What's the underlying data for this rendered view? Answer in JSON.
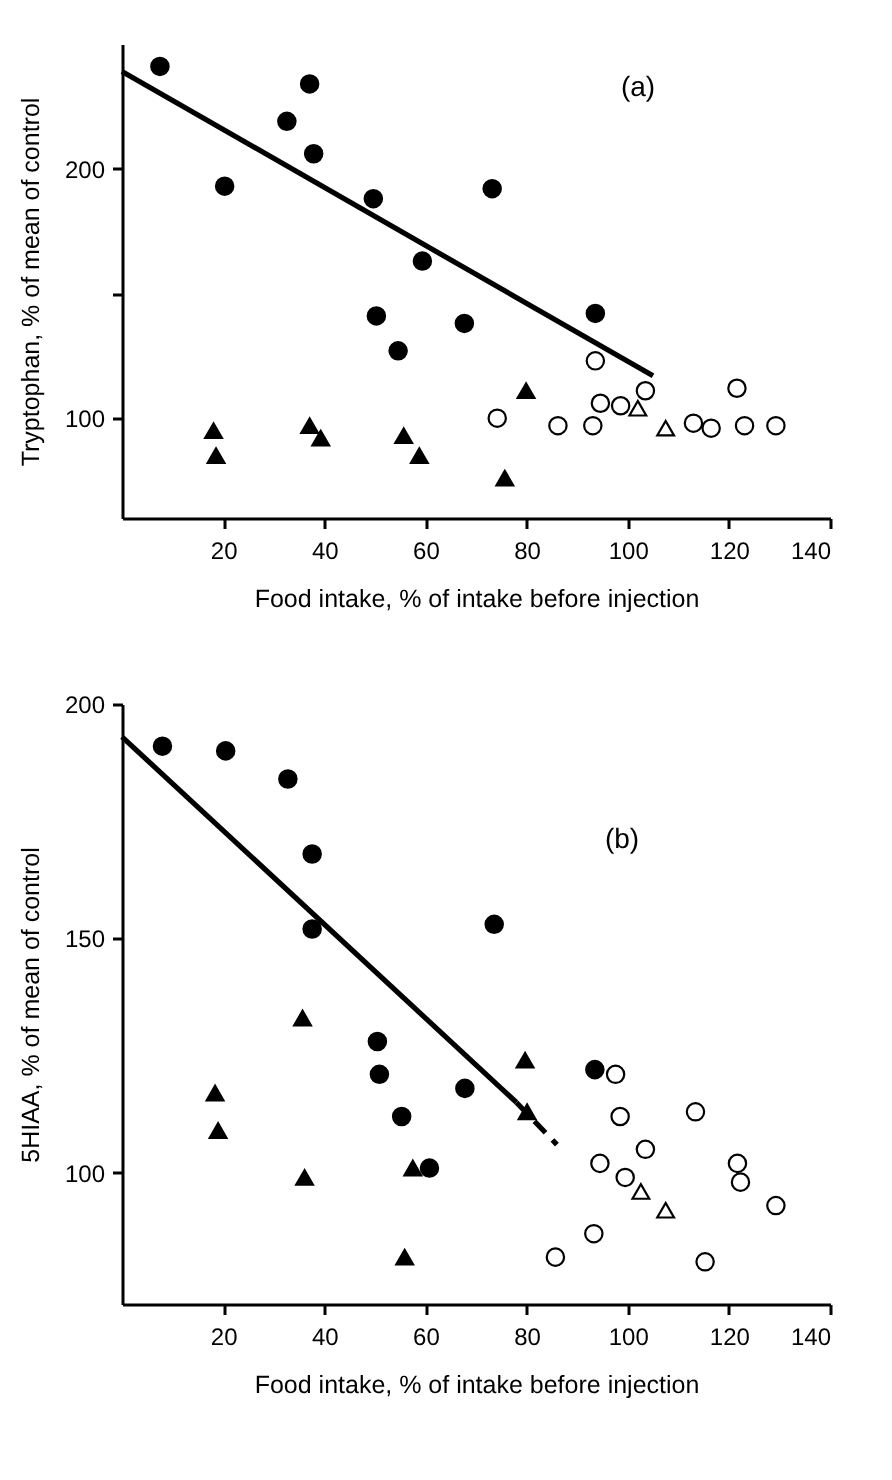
{
  "chart_data": [
    {
      "type": "scatter",
      "xlabel": "Food intake,  % of intake before injection",
      "ylabel": "Tryptophan,  % of mean of control",
      "annotations": [
        "(a)"
      ],
      "xlim": [
        0,
        140
      ],
      "ylim": [
        60,
        250
      ],
      "xticks": [
        20,
        40,
        60,
        80,
        100,
        120,
        140
      ],
      "yticks": [
        100,
        {
          "value": 150,
          "label": null
        },
        200
      ],
      "series": [
        {
          "marker": "circle",
          "color": "#000000",
          "x": [
            7.5,
            20.3,
            37.1,
            32.6,
            37.9,
            49.7,
            73.2,
            59.4,
            50.3,
            54.6,
            67.7,
            93.6
          ],
          "values": [
            241,
            193,
            234,
            219,
            206,
            188,
            192,
            163,
            141,
            127,
            138,
            142
          ]
        },
        {
          "marker": "triangle",
          "color": "#000000",
          "x": [
            18.1,
            18.6,
            37.1,
            39.3,
            55.7,
            58.8,
            75.7,
            79.9
          ],
          "values": [
            95,
            85,
            97,
            92,
            93,
            85,
            76,
            111
          ]
        },
        {
          "marker": "circle",
          "color": "#ffffff",
          "x": [
            74.2,
            86.2,
            93.1,
            93.6,
            94.6,
            98.6,
            103.5,
            113,
            116.5,
            121.6,
            123.1,
            129.3
          ],
          "values": [
            100,
            97,
            97,
            123,
            106,
            105,
            111,
            98,
            96,
            112,
            97,
            97
          ]
        },
        {
          "marker": "triangle",
          "color": "#ffffff",
          "x": [
            102,
            107.5
          ],
          "values": [
            104,
            96
          ]
        },
        {
          "type": "line",
          "line_style": "solid",
          "color": "#000000",
          "x": [
            0,
            105
          ],
          "values": [
            239,
            117
          ]
        }
      ]
    },
    {
      "type": "scatter",
      "xlabel": "Food intake,  % of intake before injection",
      "ylabel": "5HIAA,  % of mean of control",
      "annotations": [
        "(b)"
      ],
      "xlim": [
        0,
        140
      ],
      "ylim": [
        72,
        200
      ],
      "xticks": [
        20,
        40,
        60,
        80,
        100,
        120,
        140
      ],
      "yticks": [
        100,
        150,
        200
      ],
      "series": [
        {
          "marker": "circle",
          "color": "#000000",
          "x": [
            8,
            20.5,
            32.8,
            37.6,
            37.6,
            73.6,
            50.5,
            50.9,
            55.3,
            67.8,
            60.8,
            93.5
          ],
          "values": [
            191,
            190,
            184,
            168,
            152,
            153,
            128,
            121,
            112,
            118,
            101,
            122
          ]
        },
        {
          "marker": "triangle",
          "color": "#000000",
          "x": [
            18.4,
            19,
            35.7,
            36.1,
            79.7,
            80.1,
            57.5,
            55.9
          ],
          "values": [
            117,
            109,
            133,
            99,
            124,
            113,
            101,
            82
          ]
        },
        {
          "marker": "circle",
          "color": "#ffffff",
          "x": [
            97.6,
            98.5,
            103.5,
            113.4,
            94.5,
            99.5,
            121.7,
            122.3,
            129.3,
            85.7,
            93.3,
            115.3
          ],
          "values": [
            121,
            112,
            105,
            113,
            102,
            99,
            102,
            98,
            93,
            82,
            87,
            81
          ]
        },
        {
          "marker": "triangle",
          "color": "#ffffff",
          "x": [
            102.6,
            107.5
          ],
          "values": [
            96,
            92
          ]
        },
        {
          "type": "line",
          "line_style": "solid",
          "color": "#000000",
          "x": [
            0,
            78
          ],
          "values": [
            193,
            115
          ]
        },
        {
          "type": "line",
          "line_style": "dashed",
          "color": "#000000",
          "x": [
            78,
            86
          ],
          "values": [
            115,
            106
          ]
        }
      ]
    }
  ]
}
